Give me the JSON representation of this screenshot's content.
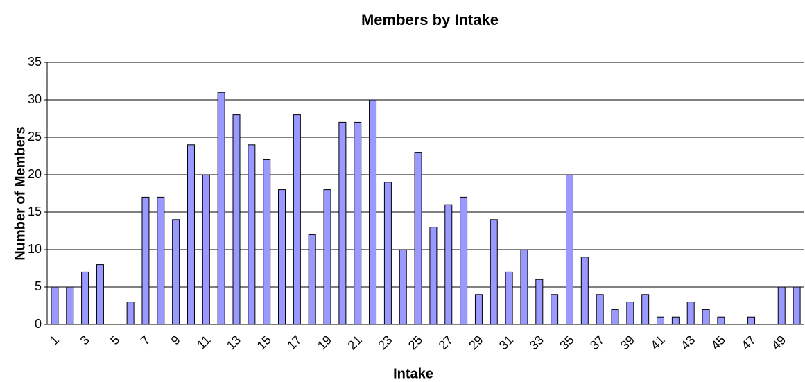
{
  "chart_data": {
    "type": "bar",
    "title": "Members by Intake",
    "x_label": "Intake",
    "y_label": "Number of Members",
    "categories": [
      1,
      null,
      3,
      null,
      5,
      null,
      7,
      null,
      9,
      null,
      11,
      null,
      13,
      null,
      15,
      null,
      17,
      null,
      19,
      null,
      21,
      null,
      23,
      null,
      25,
      null,
      27,
      null,
      29,
      null,
      31,
      null,
      33,
      null,
      35,
      null,
      37,
      null,
      39,
      null,
      41,
      null,
      43,
      null,
      45,
      null,
      47,
      null,
      49,
      null
    ],
    "values": [
      5,
      5,
      7,
      8,
      0,
      3,
      17,
      17,
      14,
      24,
      20,
      31,
      28,
      24,
      22,
      18,
      28,
      12,
      18,
      27,
      27,
      30,
      19,
      10,
      23,
      13,
      16,
      17,
      4,
      14,
      7,
      10,
      6,
      4,
      20,
      9,
      4,
      2,
      3,
      4,
      1,
      1,
      3,
      2,
      1,
      0,
      1,
      0,
      5,
      5
    ],
    "color": "#9999ff",
    "ylim": [
      0,
      35
    ],
    "yticks": [
      0,
      5,
      10,
      15,
      20,
      25,
      30,
      35
    ],
    "grid": true
  }
}
